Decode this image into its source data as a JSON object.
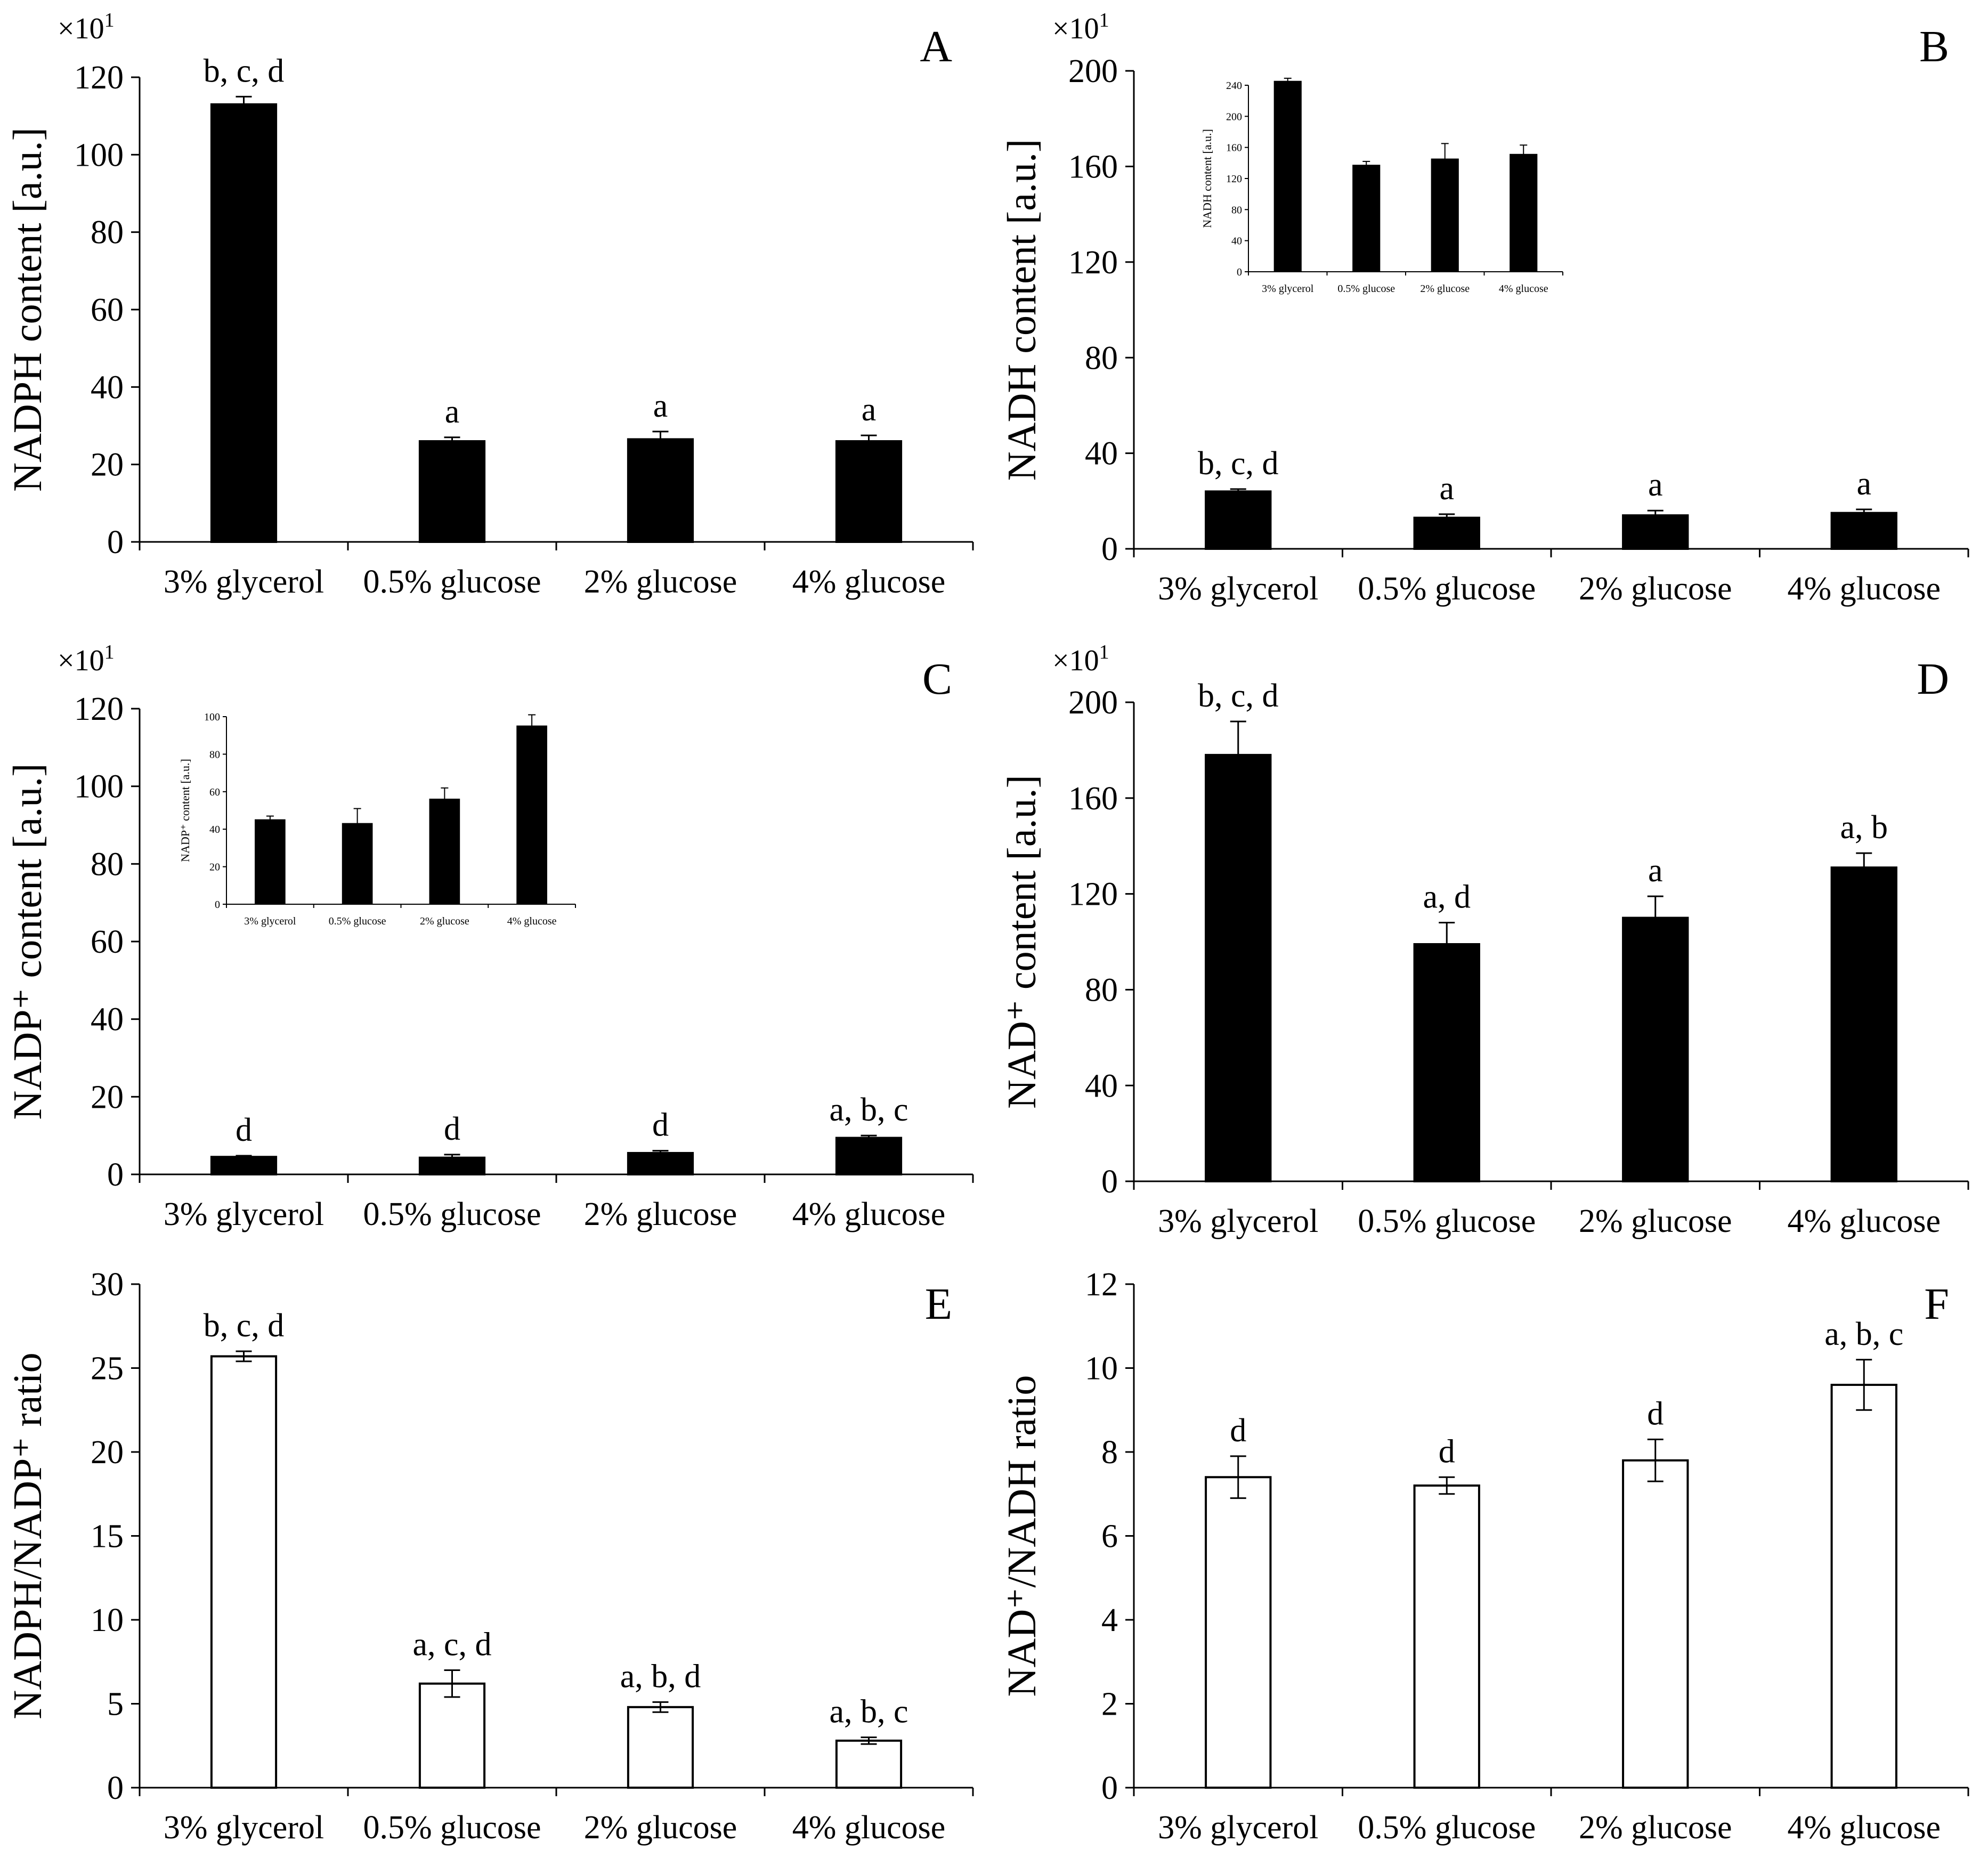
{
  "colors": {
    "filled_bar": "#000000",
    "open_bar": "#ffffff",
    "axis": "#000000",
    "background": "#ffffff"
  },
  "chart_data": [
    {
      "id": "A",
      "type": "bar",
      "panel_label": "A",
      "fill": "filled",
      "ylabel": "NADPH content [a.u.]",
      "multiplier": "×10",
      "multiplier_exp": "1",
      "categories": [
        "3% glycerol",
        "0.5% glucose",
        "2% glucose",
        "4% glucose"
      ],
      "values": [
        113,
        26,
        26.5,
        26
      ],
      "errors": [
        2,
        1,
        2,
        1.5
      ],
      "annotations": [
        "b, c, d",
        "a",
        "a",
        "a"
      ],
      "ylim": [
        0,
        120
      ],
      "yticks": [
        "0",
        "20",
        "40",
        "60",
        "80",
        "100",
        "120"
      ]
    },
    {
      "id": "B",
      "type": "bar",
      "panel_label": "B",
      "fill": "filled",
      "ylabel": "NADH content [a.u.]",
      "multiplier": "×10",
      "multiplier_exp": "1",
      "categories": [
        "3% glycerol",
        "0.5% glucose",
        "2% glucose",
        "4% glucose"
      ],
      "values": [
        24,
        13,
        14,
        15
      ],
      "errors": [
        1,
        1.5,
        2,
        1.5
      ],
      "annotations": [
        "b, c, d",
        "a",
        "a",
        "a"
      ],
      "ylim": [
        0,
        200
      ],
      "yticks": [
        "0",
        "40",
        "80",
        "120",
        "160",
        "200"
      ],
      "inset": {
        "ylabel": "NADH content [a.u.]",
        "categories": [
          "3% glycerol",
          "0.5% glucose",
          "2% glucose",
          "4% glucose"
        ],
        "values": [
          245,
          137,
          145,
          151
        ],
        "errors": [
          4,
          5,
          20,
          12
        ],
        "ylim": [
          0,
          240
        ],
        "yticks": [
          "0",
          "40",
          "80",
          "120",
          "160",
          "200",
          "240"
        ]
      }
    },
    {
      "id": "C",
      "type": "bar",
      "panel_label": "C",
      "fill": "filled",
      "ylabel": "NADP⁺ content [a.u.]",
      "multiplier": "×10",
      "multiplier_exp": "1",
      "categories": [
        "3% glycerol",
        "0.5% glucose",
        "2% glucose",
        "4% glucose"
      ],
      "values": [
        4.5,
        4.3,
        5.5,
        9.4
      ],
      "errors": [
        0.3,
        0.8,
        0.6,
        0.6
      ],
      "annotations": [
        "d",
        "d",
        "d",
        "a, b, c"
      ],
      "ylim": [
        0,
        120
      ],
      "yticks": [
        "0",
        "20",
        "40",
        "60",
        "80",
        "100",
        "120"
      ],
      "inset": {
        "ylabel": "NADP⁺ content [a.u.]",
        "categories": [
          "3% glycerol",
          "0.5% glucose",
          "2% glucose",
          "4% glucose"
        ],
        "values": [
          45,
          43,
          56,
          95
        ],
        "errors": [
          2,
          8,
          6,
          6
        ],
        "ylim": [
          0,
          100
        ],
        "yticks": [
          "0",
          "20",
          "40",
          "60",
          "80",
          "100"
        ]
      }
    },
    {
      "id": "D",
      "type": "bar",
      "panel_label": "D",
      "fill": "filled",
      "ylabel": "NAD⁺ content [a.u.]",
      "multiplier": "×10",
      "multiplier_exp": "1",
      "categories": [
        "3% glycerol",
        "0.5% glucose",
        "2% glucose",
        "4% glucose"
      ],
      "values": [
        178,
        99,
        110,
        131
      ],
      "errors": [
        14,
        9,
        9,
        6
      ],
      "annotations": [
        "b, c, d",
        "a, d",
        "a",
        "a, b"
      ],
      "ylim": [
        0,
        200
      ],
      "yticks": [
        "0",
        "40",
        "80",
        "120",
        "160",
        "200"
      ]
    },
    {
      "id": "E",
      "type": "bar",
      "panel_label": "E",
      "fill": "open",
      "ylabel": "NADPH/NADP⁺ ratio",
      "categories": [
        "3% glycerol",
        "0.5% glucose",
        "2% glucose",
        "4% glucose"
      ],
      "values": [
        25.7,
        6.2,
        4.8,
        2.8
      ],
      "errors": [
        0.3,
        0.8,
        0.3,
        0.2
      ],
      "annotations": [
        "b, c, d",
        "a, c, d",
        "a, b, d",
        "a, b, c"
      ],
      "ylim": [
        0,
        30
      ],
      "yticks": [
        "0",
        "5",
        "10",
        "15",
        "20",
        "25",
        "30"
      ]
    },
    {
      "id": "F",
      "type": "bar",
      "panel_label": "F",
      "fill": "open",
      "ylabel": "NAD⁺/NADH ratio",
      "categories": [
        "3% glycerol",
        "0.5% glucose",
        "2% glucose",
        "4% glucose"
      ],
      "values": [
        7.4,
        7.2,
        7.8,
        9.6
      ],
      "errors": [
        0.5,
        0.2,
        0.5,
        0.6
      ],
      "annotations": [
        "d",
        "d",
        "d",
        "a, b, c"
      ],
      "ylim": [
        0,
        12
      ],
      "yticks": [
        "0",
        "2",
        "4",
        "6",
        "8",
        "10",
        "12"
      ]
    }
  ]
}
